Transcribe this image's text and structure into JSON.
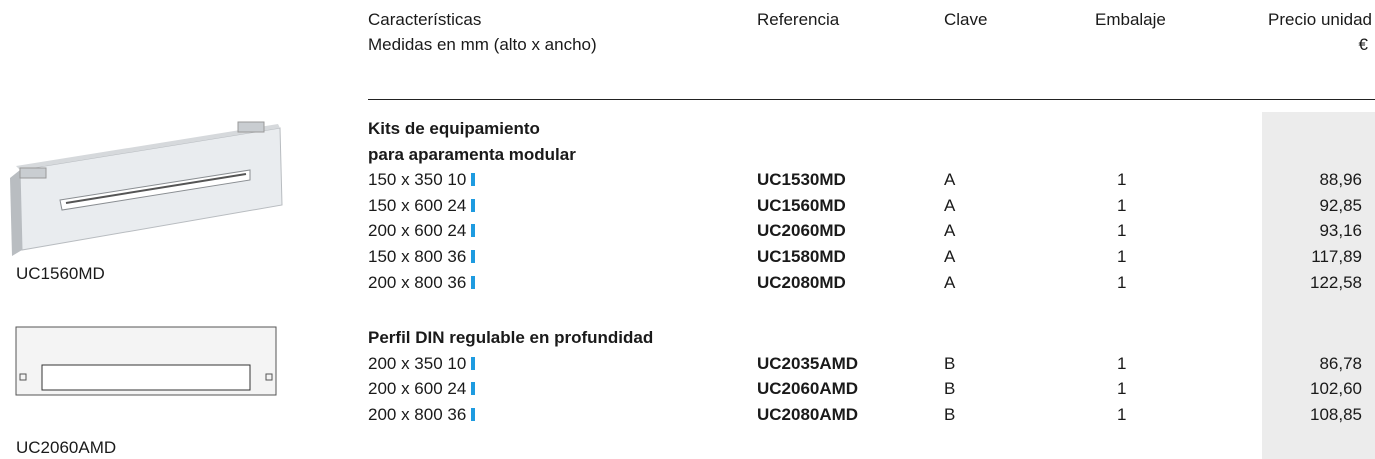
{
  "header": {
    "characteristics": "Características",
    "dimensions": "Medidas en mm (alto x ancho)",
    "reference": "Referencia",
    "key": "Clave",
    "packaging": "Embalaje",
    "unit_price": "Precio unidad",
    "currency": "€"
  },
  "images": [
    {
      "caption": "UC1560MD"
    },
    {
      "caption": "UC2060AMD"
    }
  ],
  "sections": [
    {
      "title": [
        "Kits de equipamiento",
        "para aparamenta modular"
      ],
      "rows": [
        [
          "150 x 350 10",
          "UC1530MD",
          "A",
          "1",
          "88,96"
        ],
        [
          "150 x 600 24",
          "UC1560MD",
          "A",
          "1",
          "92,85"
        ],
        [
          "200 x 600 24",
          "UC2060MD",
          "A",
          "1",
          "93,16"
        ],
        [
          "150 x 800 36",
          "UC1580MD",
          "A",
          "1",
          "117,89"
        ],
        [
          "200 x 800 36",
          "UC2080MD",
          "A",
          "1",
          "122,58"
        ]
      ]
    },
    {
      "title": [
        "Perfil DIN regulable en profundidad"
      ],
      "rows": [
        [
          "200 x 350 10",
          "UC2035AMD",
          "B",
          "1",
          "86,78"
        ],
        [
          "200 x 600 24",
          "UC2060AMD",
          "B",
          "1",
          "102,60"
        ],
        [
          "200 x 800 36",
          "UC2080AMD",
          "B",
          "1",
          "108,85"
        ]
      ]
    }
  ]
}
